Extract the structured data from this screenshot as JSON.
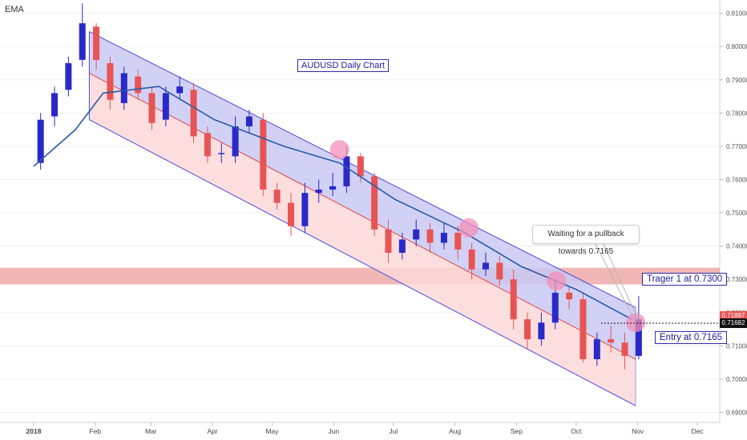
{
  "indicator": "EMA",
  "colors": {
    "bull": "#2929c9",
    "bear": "#e85454",
    "ema": "#2a5aa8",
    "channel_line": "#4a4ae0",
    "channel_upper_fill": "#c9c9f5",
    "channel_lower_fill": "#fbd8d8",
    "channel_mid": "#e04848",
    "zone": "#ea8f8f",
    "highlight": "#f38fb8"
  },
  "chart_data": {
    "type": "line",
    "title": "AUDUSD Daily Chart",
    "xlabel": "",
    "ylabel": "",
    "ylim": [
      0.687,
      0.814
    ],
    "y_ticks": [
      "0.81000",
      "0.80000",
      "0.79000",
      "0.78000",
      "0.77000",
      "0.76000",
      "0.75000",
      "0.74000",
      "0.73000",
      "0.72000",
      "0.71000",
      "0.70000",
      "0.69000"
    ],
    "x_ticks": [
      "2018",
      "Feb",
      "Mar",
      "Apr",
      "May",
      "Jun",
      "Jul",
      "Aug",
      "Sep",
      "Oct",
      "Nov",
      "Dec"
    ],
    "series": [
      {
        "style": "candlestick",
        "x": [
          "2018-01-01",
          "2018-01-08",
          "2018-01-15",
          "2018-01-22",
          "2018-01-29",
          "2018-02-05",
          "2018-02-12",
          "2018-02-19",
          "2018-02-26",
          "2018-03-05",
          "2018-03-12",
          "2018-03-19",
          "2018-03-26",
          "2018-04-02",
          "2018-04-09",
          "2018-04-16",
          "2018-04-23",
          "2018-04-30",
          "2018-05-07",
          "2018-05-14",
          "2018-05-21",
          "2018-05-28",
          "2018-06-04",
          "2018-06-11",
          "2018-06-18",
          "2018-06-25",
          "2018-07-02",
          "2018-07-09",
          "2018-07-16",
          "2018-07-23",
          "2018-07-30",
          "2018-08-06",
          "2018-08-13",
          "2018-08-20",
          "2018-08-27",
          "2018-09-03",
          "2018-09-10",
          "2018-09-17",
          "2018-09-24",
          "2018-10-01",
          "2018-10-08",
          "2018-10-15",
          "2018-10-22",
          "2018-10-29"
        ],
        "values": [
          0.778,
          0.786,
          0.795,
          0.807,
          0.796,
          0.784,
          0.792,
          0.786,
          0.777,
          0.786,
          0.788,
          0.773,
          0.767,
          0.768,
          0.776,
          0.779,
          0.757,
          0.753,
          0.746,
          0.756,
          0.757,
          0.758,
          0.767,
          0.761,
          0.745,
          0.738,
          0.742,
          0.745,
          0.741,
          0.744,
          0.739,
          0.733,
          0.735,
          0.73,
          0.718,
          0.712,
          0.717,
          0.726,
          0.724,
          0.706,
          0.712,
          0.711,
          0.707,
          0.718
        ],
        "open": [
          0.765,
          0.779,
          0.787,
          0.796,
          0.806,
          0.795,
          0.783,
          0.791,
          0.786,
          0.778,
          0.786,
          0.787,
          0.774,
          0.768,
          0.767,
          0.776,
          0.778,
          0.757,
          0.753,
          0.746,
          0.756,
          0.757,
          0.758,
          0.767,
          0.761,
          0.745,
          0.738,
          0.742,
          0.745,
          0.741,
          0.744,
          0.739,
          0.733,
          0.735,
          0.73,
          0.718,
          0.712,
          0.717,
          0.726,
          0.724,
          0.706,
          0.712,
          0.711,
          0.707
        ],
        "high": [
          0.78,
          0.788,
          0.797,
          0.813,
          0.807,
          0.797,
          0.794,
          0.793,
          0.788,
          0.788,
          0.791,
          0.789,
          0.776,
          0.771,
          0.779,
          0.781,
          0.78,
          0.759,
          0.756,
          0.759,
          0.76,
          0.762,
          0.77,
          0.768,
          0.762,
          0.748,
          0.744,
          0.748,
          0.747,
          0.747,
          0.746,
          0.741,
          0.738,
          0.737,
          0.733,
          0.72,
          0.72,
          0.73,
          0.728,
          0.726,
          0.714,
          0.716,
          0.714,
          0.725
        ],
        "low": [
          0.763,
          0.776,
          0.785,
          0.794,
          0.793,
          0.781,
          0.781,
          0.784,
          0.775,
          0.776,
          0.784,
          0.771,
          0.765,
          0.765,
          0.765,
          0.774,
          0.755,
          0.751,
          0.743,
          0.744,
          0.753,
          0.755,
          0.756,
          0.759,
          0.743,
          0.735,
          0.736,
          0.74,
          0.738,
          0.739,
          0.736,
          0.73,
          0.731,
          0.728,
          0.715,
          0.709,
          0.71,
          0.715,
          0.721,
          0.705,
          0.704,
          0.708,
          0.703,
          0.706
        ]
      },
      {
        "name": "EMA",
        "x": [
          "2018-01-01",
          "2018-01-22",
          "2018-02-05",
          "2018-03-05",
          "2018-04-02",
          "2018-05-07",
          "2018-06-04",
          "2018-07-02",
          "2018-08-06",
          "2018-09-03",
          "2018-10-01",
          "2018-10-29"
        ],
        "values": [
          0.764,
          0.775,
          0.786,
          0.788,
          0.778,
          0.77,
          0.765,
          0.754,
          0.744,
          0.734,
          0.727,
          0.718
        ]
      }
    ],
    "channel": {
      "upper": {
        "x": [
          "2018-01-29",
          "2018-10-31"
        ],
        "values": [
          0.8045,
          0.7215
        ]
      },
      "middle": {
        "x": [
          "2018-01-29",
          "2018-10-31"
        ],
        "values": [
          0.792,
          0.706
        ]
      },
      "lower": {
        "x": [
          "2018-01-29",
          "2018-10-31"
        ],
        "values": [
          0.778,
          0.692
        ]
      }
    },
    "resistance_zone": [
      0.7285,
      0.7335
    ],
    "entry_line": 0.71682,
    "markers": [
      {
        "x": "2018-06-04",
        "y": 0.769
      },
      {
        "x": "2018-08-08",
        "y": 0.7455
      },
      {
        "x": "2018-09-21",
        "y": 0.7295
      },
      {
        "x": "2018-10-31",
        "y": 0.717
      }
    ]
  },
  "annotations": {
    "callout": "Waiting for a pullback towards 0.7165",
    "target": "Trager 1 at 0.7300",
    "entry": "Entry at 0.7165"
  },
  "price_tags": [
    {
      "label": "0.71897",
      "value": 0.71897,
      "color": "#e85454"
    },
    {
      "label": "0.71682",
      "value": 0.71682,
      "color": "#111111"
    }
  ]
}
